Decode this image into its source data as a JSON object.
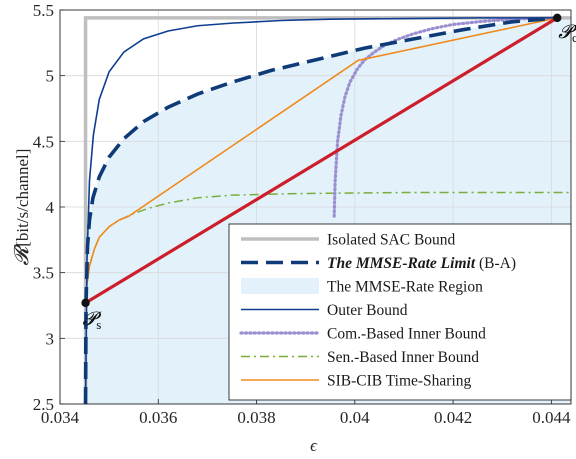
{
  "chart_data": {
    "type": "line",
    "xlabel": "ϵ",
    "ylabel_symbol": "𝓡",
    "ylabel_units": "[bit/s/channel]",
    "xlim": [
      0.034,
      0.0444
    ],
    "ylim": [
      2.5,
      5.5
    ],
    "grid": true,
    "legend_position": "bottom-right",
    "x_ticks": [
      "0.034",
      "0.036",
      "0.038",
      "0.04",
      "0.042",
      "0.044"
    ],
    "x_tick_values": [
      0.034,
      0.036,
      0.038,
      0.04,
      0.042,
      0.044
    ],
    "y_ticks": [
      "2.5",
      "3",
      "3.5",
      "4",
      "4.5",
      "5",
      "5.5"
    ],
    "y_tick_values": [
      2.5,
      3,
      3.5,
      4,
      4.5,
      5,
      5.5
    ],
    "points": {
      "Ps": {
        "main": "𝓟",
        "sub": "s",
        "x": 0.03452,
        "y": 3.27
      },
      "Pc": {
        "main": "𝓟",
        "sub": "c",
        "x": 0.04412,
        "y": 5.44
      }
    },
    "legend": [
      {
        "key": "isolated",
        "label": "Isolated SAC Bound",
        "color": "#bfbfbf"
      },
      {
        "key": "mmse_limit",
        "label_bold": "The MMSE-Rate Limit",
        "label_rest": " (B-A)",
        "color": "#0e3a78"
      },
      {
        "key": "region",
        "label": "The MMSE-Rate Region",
        "color": "#e2f1fa"
      },
      {
        "key": "outer",
        "label": "Outer Bound",
        "color": "#0f3d91"
      },
      {
        "key": "cib",
        "label": "Com.-Based Inner Bound",
        "color": "#9b8fd0"
      },
      {
        "key": "sib",
        "label": "Sen.-Based Inner Bound",
        "color": "#7aae3a"
      },
      {
        "key": "ts",
        "label": "SIB-CIB Time-Sharing",
        "color": "#f08a1c"
      }
    ],
    "series": {
      "isolated": {
        "x": [
          0.03452,
          0.03452,
          0.0444
        ],
        "y": [
          2.5,
          5.44,
          5.44
        ]
      },
      "outer": {
        "x": [
          0.03452,
          0.03455,
          0.0346,
          0.03468,
          0.0348,
          0.035,
          0.0353,
          0.0357,
          0.0362,
          0.0368,
          0.0375,
          0.0385,
          0.0395,
          0.041,
          0.0425,
          0.04412
        ],
        "y": [
          2.5,
          3.6,
          4.2,
          4.55,
          4.82,
          5.03,
          5.18,
          5.28,
          5.34,
          5.38,
          5.4,
          5.42,
          5.43,
          5.435,
          5.44,
          5.44
        ]
      },
      "mmse_limit": {
        "x": [
          0.03452,
          0.03453,
          0.03456,
          0.0346,
          0.03467,
          0.0348,
          0.035,
          0.0353,
          0.0357,
          0.0362,
          0.0368,
          0.0375,
          0.0383,
          0.0392,
          0.0402,
          0.0412,
          0.0422,
          0.0432,
          0.04412
        ],
        "y": [
          2.5,
          3.27,
          3.7,
          3.9,
          4.07,
          4.23,
          4.38,
          4.52,
          4.65,
          4.76,
          4.86,
          4.95,
          5.04,
          5.12,
          5.21,
          5.28,
          5.35,
          5.41,
          5.44
        ]
      },
      "cib": {
        "x": [
          0.03958,
          0.0396,
          0.03965,
          0.03972,
          0.0398,
          0.0399,
          0.04005,
          0.0402,
          0.0404,
          0.0406,
          0.0409,
          0.0412,
          0.0416,
          0.042,
          0.0425,
          0.043,
          0.0436,
          0.04412
        ],
        "y": [
          3.93,
          4.2,
          4.5,
          4.7,
          4.84,
          4.95,
          5.05,
          5.12,
          5.18,
          5.23,
          5.28,
          5.32,
          5.36,
          5.39,
          5.41,
          5.425,
          5.435,
          5.44
        ]
      },
      "sib": {
        "x": [
          0.03452,
          0.03455,
          0.0346,
          0.0347,
          0.0348,
          0.035,
          0.0352,
          0.0355,
          0.0358,
          0.0362,
          0.0368,
          0.0375,
          0.0385,
          0.0395,
          0.041,
          0.0425,
          0.0444
        ],
        "y": [
          3.27,
          3.42,
          3.55,
          3.68,
          3.77,
          3.85,
          3.9,
          3.95,
          3.99,
          4.03,
          4.07,
          4.09,
          4.1,
          4.105,
          4.11,
          4.11,
          4.11
        ]
      },
      "ts": {
        "x": [
          0.03452,
          0.03455,
          0.0346,
          0.0347,
          0.0348,
          0.035,
          0.0352,
          0.0354,
          0.04008,
          0.04012,
          0.04412
        ],
        "y": [
          3.27,
          3.42,
          3.55,
          3.68,
          3.77,
          3.85,
          3.9,
          3.93,
          5.12,
          5.12,
          5.44
        ]
      },
      "chord": {
        "x": [
          0.03452,
          0.04412
        ],
        "y": [
          3.27,
          5.44
        ]
      }
    }
  }
}
